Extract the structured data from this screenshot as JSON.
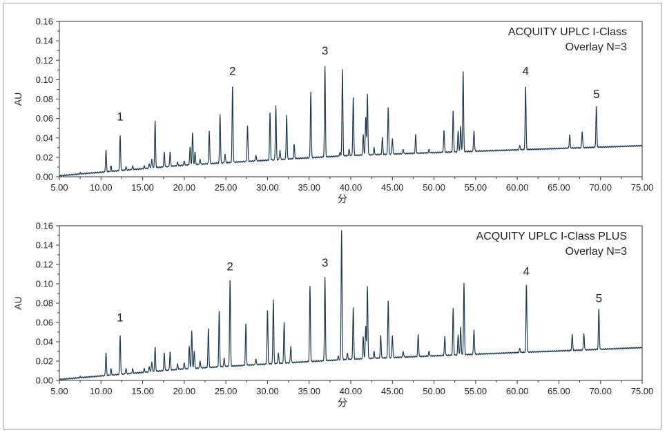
{
  "chart_data": [
    {
      "type": "line",
      "ylabel": "AU",
      "xlabel": "分",
      "annotation_lines": [
        "ACQUITY UPLC I-Class",
        "Overlay N=3"
      ],
      "xlim": [
        5.0,
        75.0
      ],
      "ylim": [
        0.0,
        0.16
      ],
      "x_ticks": [
        "5.00",
        "10.00",
        "15.00",
        "20.00",
        "25.00",
        "30.00",
        "35.00",
        "40.00",
        "45.00",
        "50.00",
        "55.00",
        "60.00",
        "65.00",
        "70.00",
        "75.00"
      ],
      "y_ticks": [
        "0.00",
        "0.02",
        "0.04",
        "0.06",
        "0.08",
        "0.10",
        "0.12",
        "0.14",
        "0.16"
      ],
      "line_color": "#1e3a4c",
      "grid": false,
      "baseline": [
        [
          5.0,
          0.001
        ],
        [
          20.0,
          0.012
        ],
        [
          40.0,
          0.022
        ],
        [
          75.0,
          0.032
        ]
      ],
      "peaks": [
        [
          7.5,
          0.004
        ],
        [
          10.6,
          0.027
        ],
        [
          11.2,
          0.011
        ],
        [
          12.3,
          0.042
        ],
        [
          13.0,
          0.01
        ],
        [
          13.8,
          0.011
        ],
        [
          15.2,
          0.011
        ],
        [
          15.8,
          0.013
        ],
        [
          16.1,
          0.018
        ],
        [
          16.5,
          0.057
        ],
        [
          17.6,
          0.025
        ],
        [
          18.3,
          0.025
        ],
        [
          19.2,
          0.015
        ],
        [
          20.0,
          0.016
        ],
        [
          20.7,
          0.03
        ],
        [
          21.0,
          0.045
        ],
        [
          21.3,
          0.025
        ],
        [
          21.9,
          0.018
        ],
        [
          23.0,
          0.047
        ],
        [
          24.3,
          0.064
        ],
        [
          24.9,
          0.023
        ],
        [
          25.8,
          0.092
        ],
        [
          27.6,
          0.052
        ],
        [
          28.6,
          0.022
        ],
        [
          30.3,
          0.065
        ],
        [
          31.0,
          0.073
        ],
        [
          31.5,
          0.027
        ],
        [
          32.3,
          0.063
        ],
        [
          33.2,
          0.033
        ],
        [
          35.2,
          0.087
        ],
        [
          36.9,
          0.113
        ],
        [
          38.7,
          0.025
        ],
        [
          39.0,
          0.11
        ],
        [
          39.8,
          0.028
        ],
        [
          40.3,
          0.081
        ],
        [
          41.5,
          0.043
        ],
        [
          41.8,
          0.061
        ],
        [
          42.0,
          0.085
        ],
        [
          42.8,
          0.03
        ],
        [
          43.8,
          0.04
        ],
        [
          44.5,
          0.071
        ],
        [
          45.0,
          0.039
        ],
        [
          46.3,
          0.028
        ],
        [
          47.8,
          0.043
        ],
        [
          49.4,
          0.028
        ],
        [
          51.2,
          0.047
        ],
        [
          52.3,
          0.067
        ],
        [
          52.9,
          0.047
        ],
        [
          53.2,
          0.052
        ],
        [
          53.5,
          0.108
        ],
        [
          54.8,
          0.047
        ],
        [
          60.3,
          0.032
        ],
        [
          61.0,
          0.092
        ],
        [
          66.3,
          0.043
        ],
        [
          67.8,
          0.046
        ],
        [
          69.5,
          0.072
        ]
      ],
      "peak_labels": [
        {
          "text": "1",
          "x": 12.3,
          "y": 0.058
        },
        {
          "text": "2",
          "x": 25.8,
          "y": 0.105
        },
        {
          "text": "3",
          "x": 36.9,
          "y": 0.126
        },
        {
          "text": "4",
          "x": 61.0,
          "y": 0.105
        },
        {
          "text": "5",
          "x": 69.5,
          "y": 0.081
        }
      ]
    },
    {
      "type": "line",
      "ylabel": "AU",
      "xlabel": "分",
      "annotation_lines": [
        "ACQUITY UPLC I-Class PLUS",
        "Overlay N=3"
      ],
      "xlim": [
        5.0,
        75.0
      ],
      "ylim": [
        0.0,
        0.16
      ],
      "x_ticks": [
        "5.00",
        "10.00",
        "15.00",
        "20.00",
        "25.00",
        "30.00",
        "35.00",
        "40.00",
        "45.00",
        "50.00",
        "55.00",
        "60.00",
        "65.00",
        "70.00",
        "75.00"
      ],
      "y_ticks": [
        "0.00",
        "0.02",
        "0.04",
        "0.06",
        "0.08",
        "0.10",
        "0.12",
        "0.14",
        "0.16"
      ],
      "line_color": "#1e3a4c",
      "grid": false,
      "baseline": [
        [
          5.0,
          0.001
        ],
        [
          20.0,
          0.012
        ],
        [
          40.0,
          0.022
        ],
        [
          75.0,
          0.034
        ]
      ],
      "peaks": [
        [
          7.5,
          0.004
        ],
        [
          10.6,
          0.028
        ],
        [
          11.2,
          0.012
        ],
        [
          12.3,
          0.046
        ],
        [
          13.0,
          0.012
        ],
        [
          13.8,
          0.012
        ],
        [
          15.2,
          0.012
        ],
        [
          15.8,
          0.014
        ],
        [
          16.1,
          0.019
        ],
        [
          16.5,
          0.034
        ],
        [
          17.6,
          0.028
        ],
        [
          18.3,
          0.029
        ],
        [
          19.2,
          0.017
        ],
        [
          20.0,
          0.018
        ],
        [
          20.6,
          0.035
        ],
        [
          20.9,
          0.051
        ],
        [
          21.2,
          0.03
        ],
        [
          21.9,
          0.02
        ],
        [
          22.9,
          0.053
        ],
        [
          24.2,
          0.071
        ],
        [
          24.8,
          0.023
        ],
        [
          25.5,
          0.103
        ],
        [
          27.4,
          0.058
        ],
        [
          28.6,
          0.022
        ],
        [
          30.0,
          0.072
        ],
        [
          30.7,
          0.083
        ],
        [
          31.3,
          0.028
        ],
        [
          32.0,
          0.06
        ],
        [
          32.8,
          0.035
        ],
        [
          35.1,
          0.097
        ],
        [
          36.9,
          0.106
        ],
        [
          38.5,
          0.025
        ],
        [
          38.9,
          0.155
        ],
        [
          39.6,
          0.028
        ],
        [
          40.3,
          0.075
        ],
        [
          41.5,
          0.045
        ],
        [
          41.8,
          0.056
        ],
        [
          42.0,
          0.097
        ],
        [
          42.8,
          0.03
        ],
        [
          43.6,
          0.046
        ],
        [
          44.5,
          0.082
        ],
        [
          45.0,
          0.046
        ],
        [
          46.3,
          0.03
        ],
        [
          48.1,
          0.047
        ],
        [
          49.4,
          0.03
        ],
        [
          51.3,
          0.045
        ],
        [
          52.3,
          0.074
        ],
        [
          52.9,
          0.047
        ],
        [
          53.2,
          0.055
        ],
        [
          53.6,
          0.1
        ],
        [
          54.8,
          0.052
        ],
        [
          60.3,
          0.033
        ],
        [
          61.1,
          0.098
        ],
        [
          66.6,
          0.047
        ],
        [
          68.0,
          0.048
        ],
        [
          69.8,
          0.073
        ]
      ],
      "peak_labels": [
        {
          "text": "1",
          "x": 12.3,
          "y": 0.061
        },
        {
          "text": "2",
          "x": 25.5,
          "y": 0.114
        },
        {
          "text": "3",
          "x": 36.9,
          "y": 0.118
        },
        {
          "text": "4",
          "x": 61.1,
          "y": 0.109
        },
        {
          "text": "5",
          "x": 69.8,
          "y": 0.081
        }
      ]
    }
  ]
}
